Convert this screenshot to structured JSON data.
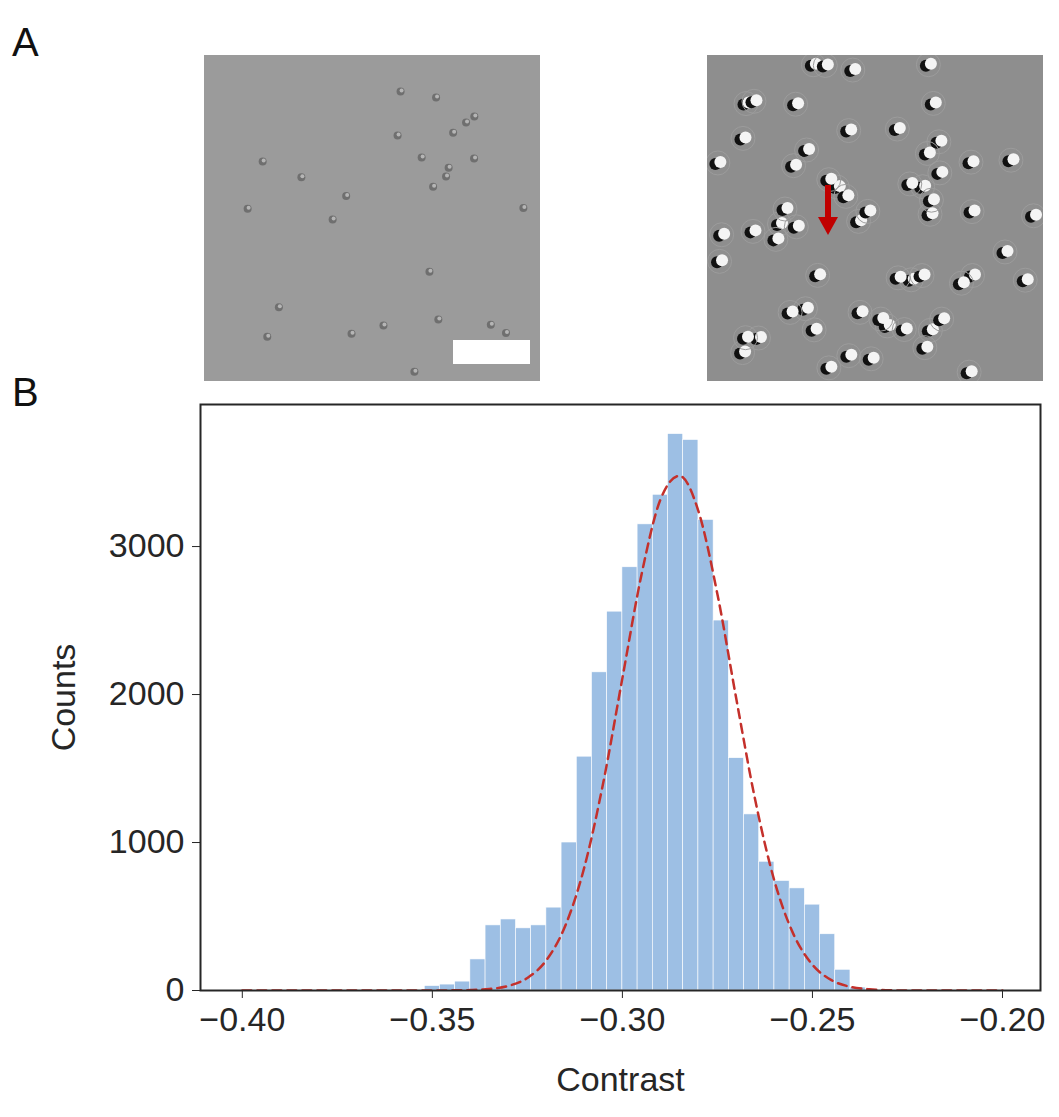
{
  "panel_labels": [
    "A",
    "B"
  ],
  "chart_data": {
    "type": "histogram",
    "xlabel": "Contrast",
    "ylabel": "Counts",
    "bins": [
      -0.352,
      -0.348,
      -0.344,
      -0.34,
      -0.336,
      -0.332,
      -0.328,
      -0.324,
      -0.32,
      -0.316,
      -0.312,
      -0.308,
      -0.304,
      -0.3,
      -0.296,
      -0.292,
      -0.288,
      -0.284,
      -0.28,
      -0.276,
      -0.272,
      -0.268,
      -0.264,
      -0.26,
      -0.256,
      -0.252,
      -0.248,
      -0.244,
      -0.24,
      -0.236
    ],
    "counts": [
      30,
      40,
      60,
      210,
      440,
      480,
      420,
      440,
      560,
      1000,
      1580,
      2150,
      2560,
      2860,
      3150,
      3350,
      3760,
      3720,
      3180,
      2500,
      1570,
      1190,
      870,
      740,
      690,
      580,
      380,
      140,
      20
    ],
    "color": "#9dbfe4",
    "series": [
      {
        "type": "line",
        "color": "#c4302b",
        "line_style": "dashed",
        "x": [
          -0.4,
          -0.395,
          -0.39,
          -0.385,
          -0.38,
          -0.375,
          -0.37,
          -0.365,
          -0.36,
          -0.355,
          -0.35,
          -0.345,
          -0.34,
          -0.335,
          -0.33,
          -0.325,
          -0.32,
          -0.315,
          -0.31,
          -0.305,
          -0.3,
          -0.295,
          -0.29,
          -0.285,
          -0.28,
          -0.275,
          -0.27,
          -0.265,
          -0.26,
          -0.255,
          -0.25,
          -0.245,
          -0.24,
          -0.235,
          -0.23,
          -0.225,
          -0.22,
          -0.215,
          -0.21,
          -0.205,
          -0.2
        ],
        "values": [
          0,
          0,
          0,
          0,
          0,
          0,
          0,
          0,
          0,
          0,
          0,
          1,
          3,
          10,
          31,
          85,
          205,
          439,
          834,
          1409,
          2111,
          2807,
          3317,
          3478,
          3239,
          2678,
          1966,
          1280,
          740,
          381,
          174,
          70,
          25,
          8,
          2,
          0,
          0,
          0,
          0,
          0,
          0
        ]
      }
    ],
    "xlim": [
      -0.411,
      -0.19
    ],
    "ylim": [
      0,
      3960
    ],
    "xticks": [
      {
        "value": -0.4,
        "label": "−0.40"
      },
      {
        "value": -0.35,
        "label": "−0.35"
      },
      {
        "value": -0.3,
        "label": "−0.30"
      },
      {
        "value": -0.25,
        "label": "−0.25"
      },
      {
        "value": -0.2,
        "label": "−0.20"
      }
    ],
    "yticks": [
      0,
      1000,
      2000,
      3000
    ],
    "grid": false
  }
}
